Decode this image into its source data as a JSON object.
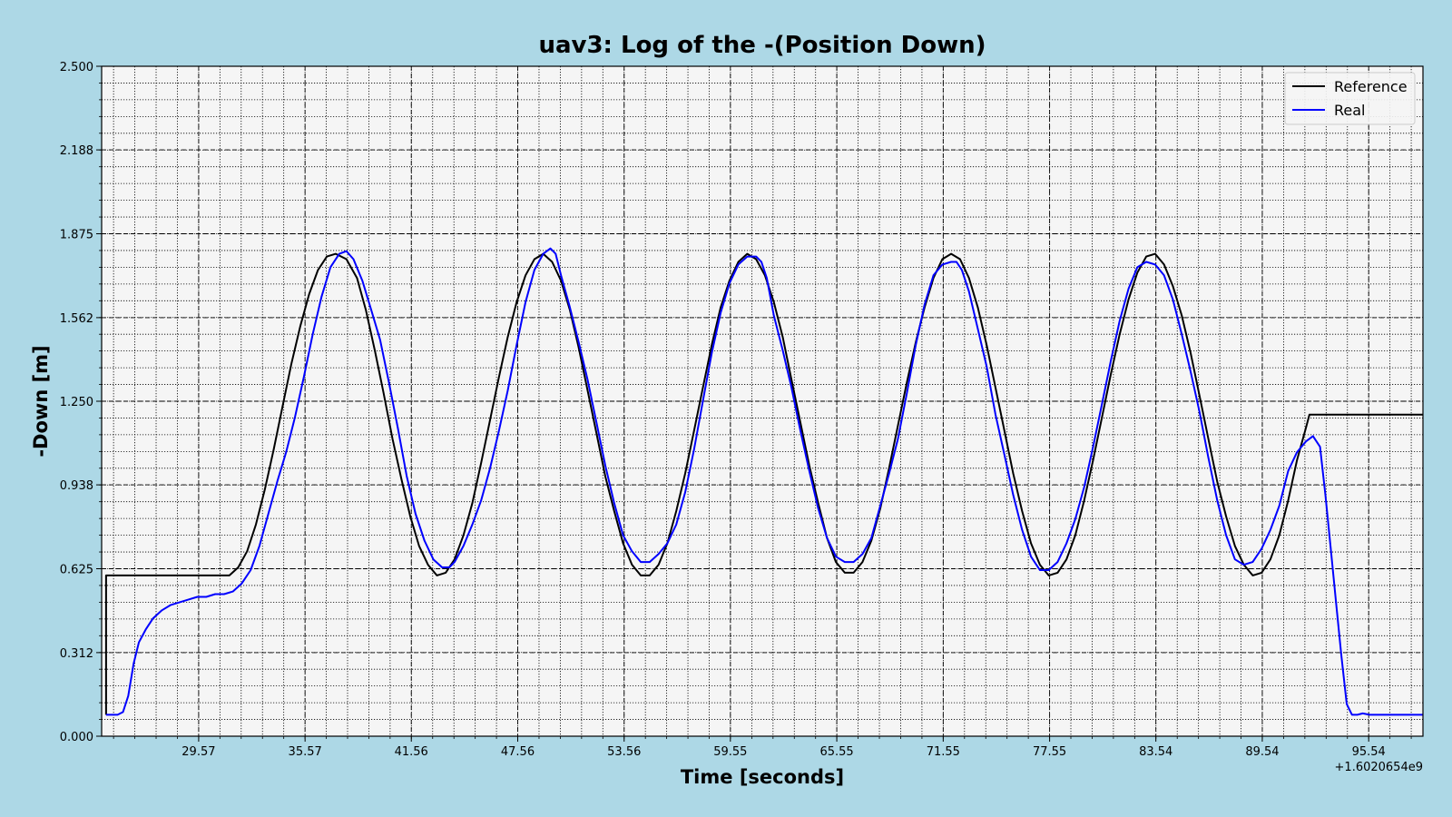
{
  "chart_data": {
    "type": "line",
    "title": "uav3: Log of the -(Position Down)",
    "xlabel": "Time [seconds]",
    "ylabel": "-Down [m]",
    "x_offset_label": "+1.6020654e9",
    "xlim": [
      24.1,
      98.6
    ],
    "ylim": [
      0.0,
      2.5
    ],
    "xticks": [
      29.57,
      35.57,
      41.56,
      47.56,
      53.56,
      59.55,
      65.55,
      71.55,
      77.55,
      83.54,
      89.54,
      95.54
    ],
    "xtick_labels": [
      "29.57",
      "35.57",
      "41.56",
      "47.56",
      "53.56",
      "59.55",
      "65.55",
      "71.55",
      "77.55",
      "83.54",
      "89.54",
      "95.54"
    ],
    "yticks": [
      0.0,
      0.312,
      0.625,
      0.938,
      1.25,
      1.562,
      1.875,
      2.188,
      2.5
    ],
    "ytick_labels": [
      "0.000",
      "0.312",
      "0.625",
      "0.938",
      "1.250",
      "1.562",
      "1.875",
      "2.188",
      "2.500"
    ],
    "grid": true,
    "legend_position": "top-right",
    "background": "#add8e6",
    "plot_background": "#f5f5f5",
    "series": [
      {
        "name": "Reference",
        "color": "#000000",
        "x": [
          24.35,
          24.35,
          30.1,
          31.0,
          31.3,
          31.8,
          32.3,
          32.8,
          33.3,
          33.8,
          34.3,
          34.8,
          35.3,
          35.8,
          36.3,
          36.8,
          37.3,
          37.9,
          38.5,
          39.0,
          39.5,
          40.0,
          40.5,
          41.0,
          41.5,
          42.0,
          42.5,
          43.0,
          43.5,
          44.0,
          44.5,
          45.0,
          45.5,
          46.0,
          46.5,
          47.0,
          47.5,
          48.0,
          48.5,
          49.0,
          49.5,
          50.0,
          50.5,
          51.0,
          51.5,
          52.0,
          52.5,
          53.0,
          53.5,
          54.0,
          54.5,
          55.0,
          55.5,
          56.0,
          56.5,
          57.0,
          57.5,
          58.0,
          58.5,
          59.0,
          59.5,
          60.0,
          60.5,
          61.0,
          61.5,
          62.0,
          62.5,
          63.0,
          63.5,
          64.0,
          64.5,
          65.0,
          65.5,
          66.0,
          66.5,
          67.0,
          67.5,
          68.0,
          68.5,
          69.0,
          69.5,
          70.0,
          70.5,
          71.0,
          71.5,
          72.0,
          72.5,
          73.0,
          73.5,
          74.0,
          74.5,
          75.0,
          75.5,
          76.0,
          76.5,
          77.0,
          77.5,
          78.0,
          78.5,
          79.0,
          79.5,
          80.0,
          80.5,
          81.0,
          81.5,
          82.0,
          82.5,
          83.0,
          83.5,
          84.0,
          84.5,
          85.0,
          85.5,
          86.0,
          86.5,
          87.0,
          87.5,
          88.0,
          88.5,
          89.0,
          89.5,
          90.0,
          90.5,
          91.0,
          91.5,
          92.0,
          92.2,
          92.9,
          98.6
        ],
        "y": [
          0.08,
          0.6,
          0.6,
          0.6,
          0.6,
          0.63,
          0.69,
          0.79,
          0.92,
          1.07,
          1.23,
          1.39,
          1.53,
          1.65,
          1.74,
          1.79,
          1.8,
          1.78,
          1.71,
          1.59,
          1.44,
          1.28,
          1.11,
          0.96,
          0.82,
          0.71,
          0.64,
          0.6,
          0.61,
          0.66,
          0.75,
          0.87,
          1.02,
          1.18,
          1.34,
          1.49,
          1.62,
          1.72,
          1.78,
          1.8,
          1.77,
          1.7,
          1.59,
          1.45,
          1.29,
          1.13,
          0.97,
          0.84,
          0.72,
          0.64,
          0.6,
          0.6,
          0.64,
          0.72,
          0.84,
          0.98,
          1.14,
          1.3,
          1.46,
          1.6,
          1.7,
          1.77,
          1.8,
          1.78,
          1.72,
          1.62,
          1.49,
          1.33,
          1.17,
          1.01,
          0.87,
          0.74,
          0.65,
          0.61,
          0.61,
          0.65,
          0.73,
          0.85,
          1.0,
          1.16,
          1.32,
          1.47,
          1.6,
          1.71,
          1.78,
          1.8,
          1.78,
          1.71,
          1.6,
          1.46,
          1.3,
          1.14,
          0.98,
          0.84,
          0.72,
          0.64,
          0.6,
          0.61,
          0.66,
          0.75,
          0.88,
          1.03,
          1.19,
          1.35,
          1.5,
          1.63,
          1.73,
          1.79,
          1.8,
          1.76,
          1.68,
          1.57,
          1.43,
          1.27,
          1.11,
          0.95,
          0.82,
          0.71,
          0.64,
          0.6,
          0.61,
          0.66,
          0.75,
          0.88,
          1.03,
          1.15,
          1.2,
          1.2,
          1.2
        ]
      },
      {
        "name": "Real",
        "color": "#0000ff",
        "x": [
          24.35,
          25.0,
          25.3,
          25.6,
          25.9,
          26.2,
          26.6,
          27.0,
          27.5,
          28.0,
          28.5,
          29.0,
          29.5,
          30.0,
          30.5,
          31.0,
          31.5,
          32.0,
          32.5,
          33.0,
          33.5,
          34.0,
          34.5,
          35.0,
          35.5,
          36.0,
          36.5,
          37.0,
          37.5,
          37.9,
          38.3,
          38.8,
          39.3,
          39.8,
          40.3,
          40.8,
          41.3,
          41.8,
          42.3,
          42.8,
          43.3,
          43.7,
          44.0,
          44.5,
          45.0,
          45.5,
          46.0,
          46.5,
          47.0,
          47.5,
          48.0,
          48.5,
          49.0,
          49.4,
          49.7,
          50.0,
          50.5,
          51.0,
          51.5,
          52.0,
          52.5,
          53.0,
          53.5,
          54.0,
          54.5,
          55.0,
          55.5,
          56.0,
          56.5,
          57.0,
          57.5,
          58.0,
          58.5,
          59.0,
          59.5,
          60.0,
          60.5,
          61.0,
          61.3,
          61.6,
          62.0,
          62.5,
          63.0,
          63.5,
          64.0,
          64.5,
          65.0,
          65.5,
          66.0,
          66.5,
          67.0,
          67.5,
          68.0,
          68.5,
          69.0,
          69.5,
          70.0,
          70.5,
          71.0,
          71.5,
          72.0,
          72.3,
          72.6,
          73.0,
          73.5,
          74.0,
          74.5,
          75.0,
          75.5,
          76.0,
          76.5,
          77.0,
          77.5,
          78.0,
          78.5,
          79.0,
          79.5,
          80.0,
          80.5,
          81.0,
          81.5,
          82.0,
          82.5,
          83.0,
          83.5,
          84.0,
          84.5,
          85.0,
          85.5,
          86.0,
          86.5,
          87.0,
          87.5,
          88.0,
          88.5,
          89.0,
          89.5,
          90.0,
          90.5,
          91.0,
          91.5,
          92.0,
          92.4,
          92.8,
          93.1,
          93.4,
          93.7,
          94.0,
          94.3,
          94.6,
          94.9,
          95.2,
          95.6,
          96.0,
          97.0,
          98.6
        ],
        "y": [
          0.08,
          0.08,
          0.09,
          0.15,
          0.27,
          0.35,
          0.4,
          0.44,
          0.47,
          0.49,
          0.5,
          0.51,
          0.52,
          0.52,
          0.53,
          0.53,
          0.54,
          0.57,
          0.62,
          0.71,
          0.83,
          0.95,
          1.06,
          1.19,
          1.34,
          1.5,
          1.64,
          1.75,
          1.8,
          1.81,
          1.78,
          1.7,
          1.59,
          1.48,
          1.32,
          1.15,
          0.97,
          0.83,
          0.73,
          0.66,
          0.63,
          0.63,
          0.65,
          0.71,
          0.79,
          0.88,
          1.0,
          1.14,
          1.29,
          1.46,
          1.62,
          1.74,
          1.8,
          1.82,
          1.8,
          1.72,
          1.6,
          1.47,
          1.33,
          1.17,
          1.01,
          0.87,
          0.75,
          0.69,
          0.65,
          0.65,
          0.68,
          0.72,
          0.79,
          0.91,
          1.07,
          1.25,
          1.43,
          1.58,
          1.69,
          1.76,
          1.79,
          1.79,
          1.77,
          1.71,
          1.57,
          1.44,
          1.3,
          1.14,
          0.99,
          0.85,
          0.74,
          0.67,
          0.65,
          0.65,
          0.68,
          0.74,
          0.86,
          0.98,
          1.11,
          1.28,
          1.46,
          1.61,
          1.72,
          1.76,
          1.77,
          1.77,
          1.74,
          1.66,
          1.52,
          1.38,
          1.2,
          1.05,
          0.9,
          0.77,
          0.67,
          0.62,
          0.62,
          0.65,
          0.72,
          0.81,
          0.93,
          1.08,
          1.24,
          1.4,
          1.55,
          1.67,
          1.75,
          1.77,
          1.76,
          1.72,
          1.63,
          1.5,
          1.36,
          1.21,
          1.04,
          0.88,
          0.75,
          0.66,
          0.64,
          0.65,
          0.7,
          0.77,
          0.86,
          0.99,
          1.06,
          1.1,
          1.12,
          1.08,
          0.9,
          0.7,
          0.5,
          0.3,
          0.12,
          0.08,
          0.08,
          0.085,
          0.08,
          0.08,
          0.08,
          0.08
        ]
      }
    ]
  }
}
